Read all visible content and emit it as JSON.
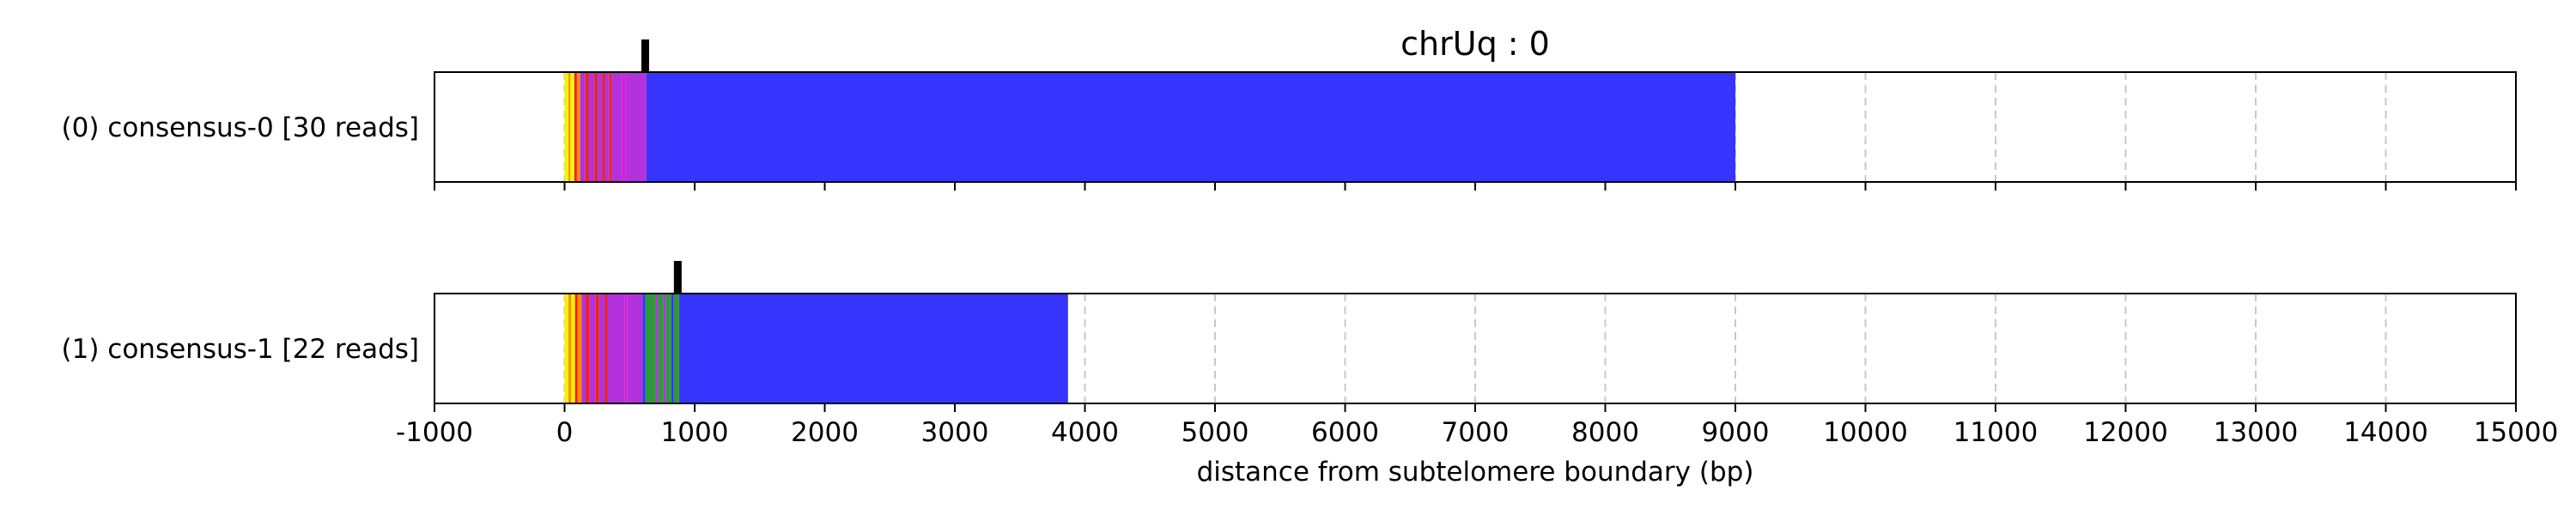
{
  "chart_data": {
    "type": "bar",
    "title": "chrUq : 0",
    "xlabel": "distance from subtelomere boundary (bp)",
    "xlim": [
      -1000,
      15000
    ],
    "xticks": [
      -1000,
      0,
      1000,
      2000,
      3000,
      4000,
      5000,
      6000,
      7000,
      8000,
      9000,
      10000,
      11000,
      12000,
      13000,
      14000,
      15000
    ],
    "grid": true,
    "colors": {
      "yellow": "#f5f500",
      "orange": "#ff8c00",
      "red": "#e8241c",
      "purple": "#b233dd",
      "magenta": "#d21fd2",
      "green": "#2d9a3a",
      "blue": "#3535ff"
    },
    "tracks": [
      {
        "label": "(0) consensus-0 [30 reads]",
        "marker": 620,
        "segments": [
          {
            "start": 0,
            "end": 30,
            "color": "yellow"
          },
          {
            "start": 30,
            "end": 45,
            "color": "orange"
          },
          {
            "start": 45,
            "end": 75,
            "color": "yellow"
          },
          {
            "start": 75,
            "end": 95,
            "color": "red"
          },
          {
            "start": 95,
            "end": 120,
            "color": "orange"
          },
          {
            "start": 120,
            "end": 160,
            "color": "purple"
          },
          {
            "start": 160,
            "end": 185,
            "color": "red"
          },
          {
            "start": 185,
            "end": 230,
            "color": "purple"
          },
          {
            "start": 230,
            "end": 255,
            "color": "red"
          },
          {
            "start": 255,
            "end": 290,
            "color": "purple"
          },
          {
            "start": 290,
            "end": 310,
            "color": "red"
          },
          {
            "start": 310,
            "end": 345,
            "color": "purple"
          },
          {
            "start": 345,
            "end": 365,
            "color": "red"
          },
          {
            "start": 365,
            "end": 440,
            "color": "purple"
          },
          {
            "start": 440,
            "end": 470,
            "color": "magenta"
          },
          {
            "start": 470,
            "end": 630,
            "color": "purple"
          },
          {
            "start": 630,
            "end": 9000,
            "color": "blue"
          }
        ]
      },
      {
        "label": "(1) consensus-1 [22 reads]",
        "marker": 870,
        "segments": [
          {
            "start": 0,
            "end": 30,
            "color": "yellow"
          },
          {
            "start": 30,
            "end": 50,
            "color": "orange"
          },
          {
            "start": 50,
            "end": 80,
            "color": "yellow"
          },
          {
            "start": 80,
            "end": 100,
            "color": "red"
          },
          {
            "start": 100,
            "end": 130,
            "color": "orange"
          },
          {
            "start": 130,
            "end": 165,
            "color": "purple"
          },
          {
            "start": 165,
            "end": 190,
            "color": "red"
          },
          {
            "start": 190,
            "end": 240,
            "color": "purple"
          },
          {
            "start": 240,
            "end": 265,
            "color": "red"
          },
          {
            "start": 265,
            "end": 310,
            "color": "purple"
          },
          {
            "start": 310,
            "end": 330,
            "color": "red"
          },
          {
            "start": 330,
            "end": 460,
            "color": "purple"
          },
          {
            "start": 460,
            "end": 480,
            "color": "magenta"
          },
          {
            "start": 480,
            "end": 600,
            "color": "purple"
          },
          {
            "start": 600,
            "end": 620,
            "color": "blue"
          },
          {
            "start": 620,
            "end": 700,
            "color": "green"
          },
          {
            "start": 700,
            "end": 720,
            "color": "purple"
          },
          {
            "start": 720,
            "end": 760,
            "color": "green"
          },
          {
            "start": 760,
            "end": 780,
            "color": "purple"
          },
          {
            "start": 780,
            "end": 820,
            "color": "green"
          },
          {
            "start": 820,
            "end": 840,
            "color": "blue"
          },
          {
            "start": 840,
            "end": 880,
            "color": "green"
          },
          {
            "start": 880,
            "end": 3870,
            "color": "blue"
          }
        ]
      }
    ]
  }
}
